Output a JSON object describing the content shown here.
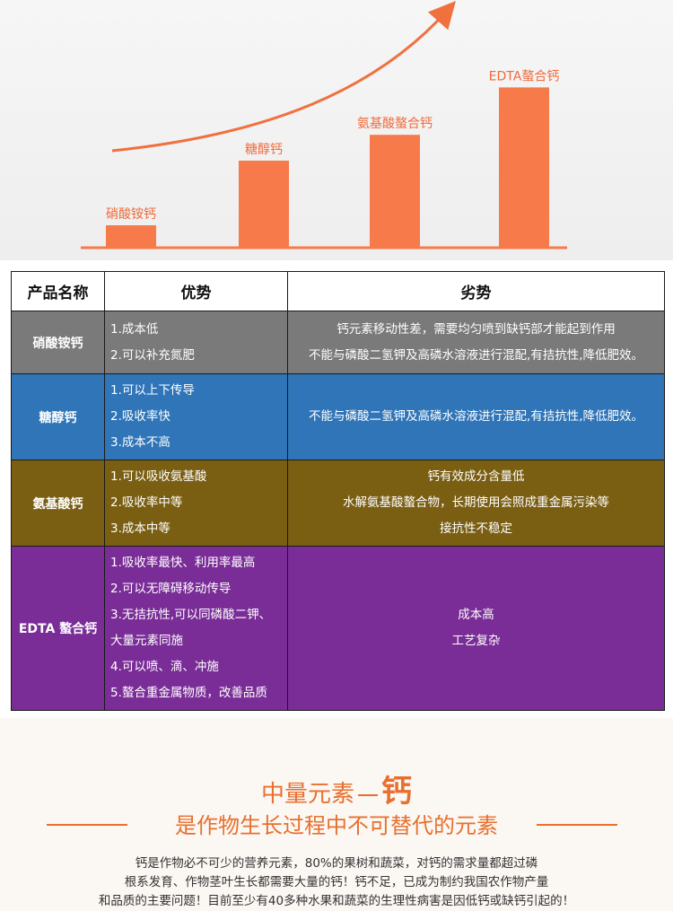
{
  "chart": {
    "bars": [
      {
        "label": "硝酸铵钙",
        "level": 1
      },
      {
        "label": "糖醇钙",
        "level": 4
      },
      {
        "label": "氨基酸螯合钙",
        "level": 5.2
      },
      {
        "label": "EDTA螯合钙",
        "level": 7.4
      }
    ],
    "bar_color": "#f77a4a",
    "label_color": "#f26a3a",
    "arrow_color": "#f0703e"
  },
  "table": {
    "headers": {
      "name": "产品名称",
      "pros": "优势",
      "cons": "劣势"
    },
    "rows": [
      {
        "name": "硝酸铵钙",
        "pros": [
          "1.成本低",
          "2.可以补充氮肥"
        ],
        "cons": [
          "钙元素移动性差，需要均匀喷到缺钙部才能起到作用",
          "不能与磷酸二氢钾及高磷水溶液进行混配,有拮抗性,降低肥效。"
        ]
      },
      {
        "name": "糖醇钙",
        "pros": [
          "1.可以上下传导",
          "2.吸收率快",
          "3.成本不高"
        ],
        "cons": [
          "不能与磷酸二氢钾及高磷水溶液进行混配,有拮抗性,降低肥效。"
        ]
      },
      {
        "name": "氨基酸钙",
        "pros": [
          "1.可以吸收氨基酸",
          "2.吸收率中等",
          "3.成本中等"
        ],
        "cons": [
          "钙有效成分含量低",
          "水解氨基酸螯合物，长期使用会照成重金属污染等",
          "接抗性不稳定"
        ]
      },
      {
        "name": "EDTA 螯合钙",
        "pros": [
          "1.吸收率最快、利用率最高",
          "2.可以无障碍移动传导",
          "3.无拮抗性,可以同磷酸二钾、",
          "大量元素同施",
          "4.可以喷、滴、冲施",
          "5.螯合重金属物质，改善品质"
        ],
        "cons": [
          "成本高",
          "工艺复杂"
        ]
      }
    ]
  },
  "bottom": {
    "heading_part1": "中量元素",
    "heading_part2": "钙",
    "heading_line2": "是作物生长过程中不可替代的元素",
    "paragraph": [
      "钙是作物必不可少的营养元素，80%的果树和蔬菜，对钙的需求量都超过磷",
      "根系发育、作物茎叶生长都需要大量的钙！钙不足，已成为制约我国农作物产量",
      "和品质的主要问题！目前至少有40多种水果和蔬菜的生理性病害是因低钙或缺钙引起的！"
    ],
    "accent_color": "#e8702f"
  }
}
